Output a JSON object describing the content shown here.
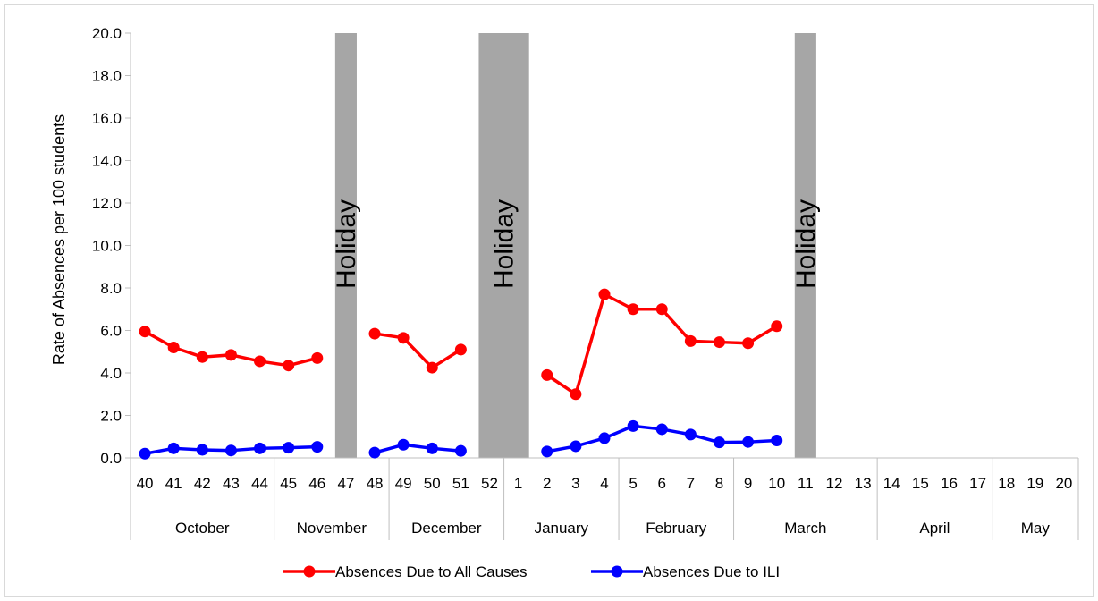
{
  "chart_data": {
    "type": "line",
    "ylabel": "Rate of Absences per 100 students",
    "ylim": [
      0,
      20
    ],
    "y_ticks": [
      "0.0",
      "2.0",
      "4.0",
      "6.0",
      "8.0",
      "10.0",
      "12.0",
      "14.0",
      "16.0",
      "18.0",
      "20.0"
    ],
    "weeks": [
      "40",
      "41",
      "42",
      "43",
      "44",
      "45",
      "46",
      "47",
      "48",
      "49",
      "50",
      "51",
      "52",
      "1",
      "2",
      "3",
      "4",
      "5",
      "6",
      "7",
      "8",
      "9",
      "10",
      "11",
      "12",
      "13",
      "14",
      "15",
      "16",
      "17",
      "18",
      "19",
      "20"
    ],
    "months": [
      {
        "name": "October",
        "start": "40",
        "end": "44"
      },
      {
        "name": "November",
        "start": "45",
        "end": "48"
      },
      {
        "name": "December",
        "start": "49",
        "end": "52"
      },
      {
        "name": "January",
        "start": "1",
        "end": "4"
      },
      {
        "name": "February",
        "start": "5",
        "end": "8"
      },
      {
        "name": "March",
        "start": "9",
        "end": "13"
      },
      {
        "name": "April",
        "start": "14",
        "end": "17"
      },
      {
        "name": "May",
        "start": "18",
        "end": "20"
      }
    ],
    "holidays": [
      {
        "label": "Holiday",
        "weeks": [
          "47"
        ]
      },
      {
        "label": "Holiday",
        "weeks": [
          "52",
          "1"
        ]
      },
      {
        "label": "Holiday",
        "weeks": [
          "11"
        ]
      }
    ],
    "series": [
      {
        "name": "Absences Due to All Causes",
        "color": "#ff0000",
        "values": [
          5.95,
          5.2,
          4.75,
          4.85,
          4.55,
          4.35,
          4.7,
          null,
          5.85,
          5.65,
          4.25,
          5.1,
          null,
          null,
          3.9,
          3.0,
          7.7,
          7.0,
          7.0,
          5.5,
          5.45,
          5.4,
          6.2,
          null,
          null,
          null,
          null,
          null,
          null,
          null,
          null,
          null,
          null
        ]
      },
      {
        "name": "Absences Due to ILI",
        "color": "#0000ff",
        "values": [
          0.2,
          0.45,
          0.38,
          0.35,
          0.45,
          0.48,
          0.52,
          null,
          0.25,
          0.62,
          0.45,
          0.33,
          null,
          null,
          0.3,
          0.55,
          0.93,
          1.5,
          1.35,
          1.1,
          0.73,
          0.75,
          0.82,
          null,
          null,
          null,
          null,
          null,
          null,
          null,
          null,
          null,
          null
        ]
      }
    ],
    "grid": false,
    "legend_position": "bottom"
  }
}
